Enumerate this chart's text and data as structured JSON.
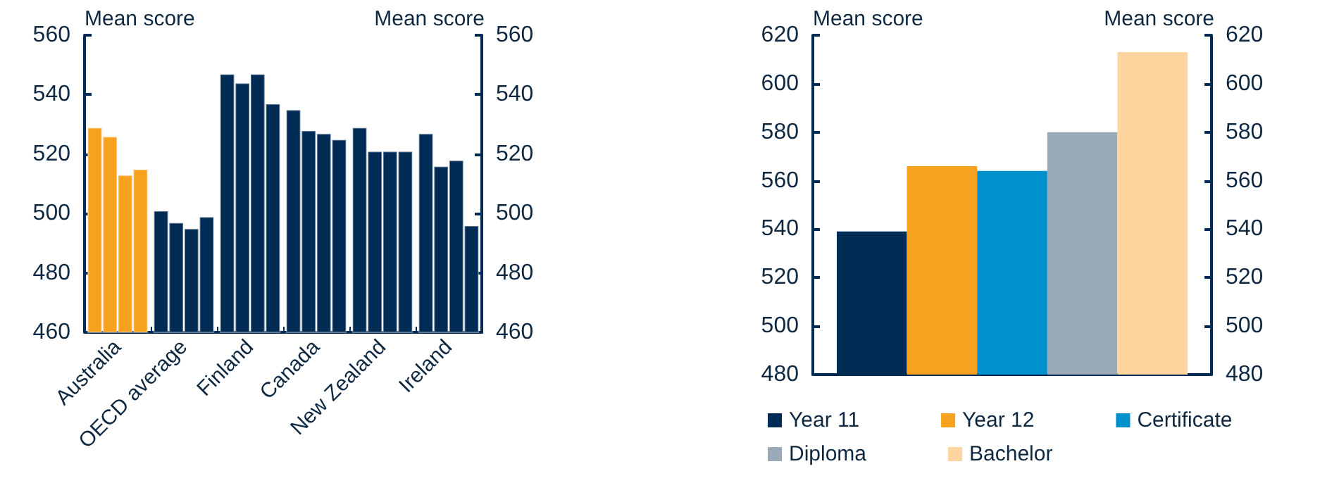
{
  "chart_data": [
    {
      "type": "bar",
      "ylabel": "Mean score",
      "y2label": "Mean score",
      "categories": [
        "Australia",
        "OECD average",
        "Finland",
        "Canada",
        "New Zealand",
        "Ireland"
      ],
      "series": [
        {
          "colors": [
            "#f7a21f",
            "#002b54",
            "#002b54",
            "#002b54",
            "#002b54",
            "#002b54"
          ],
          "values": [
            529,
            501,
            547,
            535,
            529,
            527
          ]
        },
        {
          "colors": [
            "#f7a21f",
            "#002b54",
            "#002b54",
            "#002b54",
            "#002b54",
            "#002b54"
          ],
          "values": [
            526,
            497,
            544,
            528,
            521,
            516
          ]
        },
        {
          "colors": [
            "#f7a21f",
            "#002b54",
            "#002b54",
            "#002b54",
            "#002b54",
            "#002b54"
          ],
          "values": [
            513,
            495,
            547,
            527,
            521,
            518
          ]
        },
        {
          "colors": [
            "#f7a21f",
            "#002b54",
            "#002b54",
            "#002b54",
            "#002b54",
            "#002b54"
          ],
          "values": [
            515,
            499,
            537,
            525,
            521,
            496
          ]
        }
      ],
      "ylim": [
        460,
        560
      ],
      "yticks": [
        460,
        480,
        500,
        520,
        540,
        560
      ],
      "y2lim": [
        460,
        560
      ],
      "y2ticks": [
        460,
        480,
        500,
        520,
        540,
        560
      ],
      "grid": false,
      "legend": false
    },
    {
      "type": "bar",
      "ylabel": "Mean score",
      "y2label": "Mean score",
      "categories": [
        null
      ],
      "series": [
        {
          "name": "Year 11",
          "color": "#002b54",
          "values": [
            539
          ]
        },
        {
          "name": "Year 12",
          "color": "#f7a21f",
          "values": [
            566
          ]
        },
        {
          "name": "Certificate",
          "color": "#0090cd",
          "values": [
            564
          ]
        },
        {
          "name": "Diploma",
          "color": "#9aaab8",
          "values": [
            580
          ]
        },
        {
          "name": "Bachelor",
          "color": "#fed59f",
          "values": [
            613
          ]
        }
      ],
      "ylim": [
        480,
        620
      ],
      "yticks": [
        480,
        500,
        520,
        540,
        560,
        580,
        600,
        620
      ],
      "y2lim": [
        480,
        620
      ],
      "y2ticks": [
        480,
        500,
        520,
        540,
        560,
        580,
        600,
        620
      ],
      "grid": false,
      "legend": "bottom"
    }
  ]
}
